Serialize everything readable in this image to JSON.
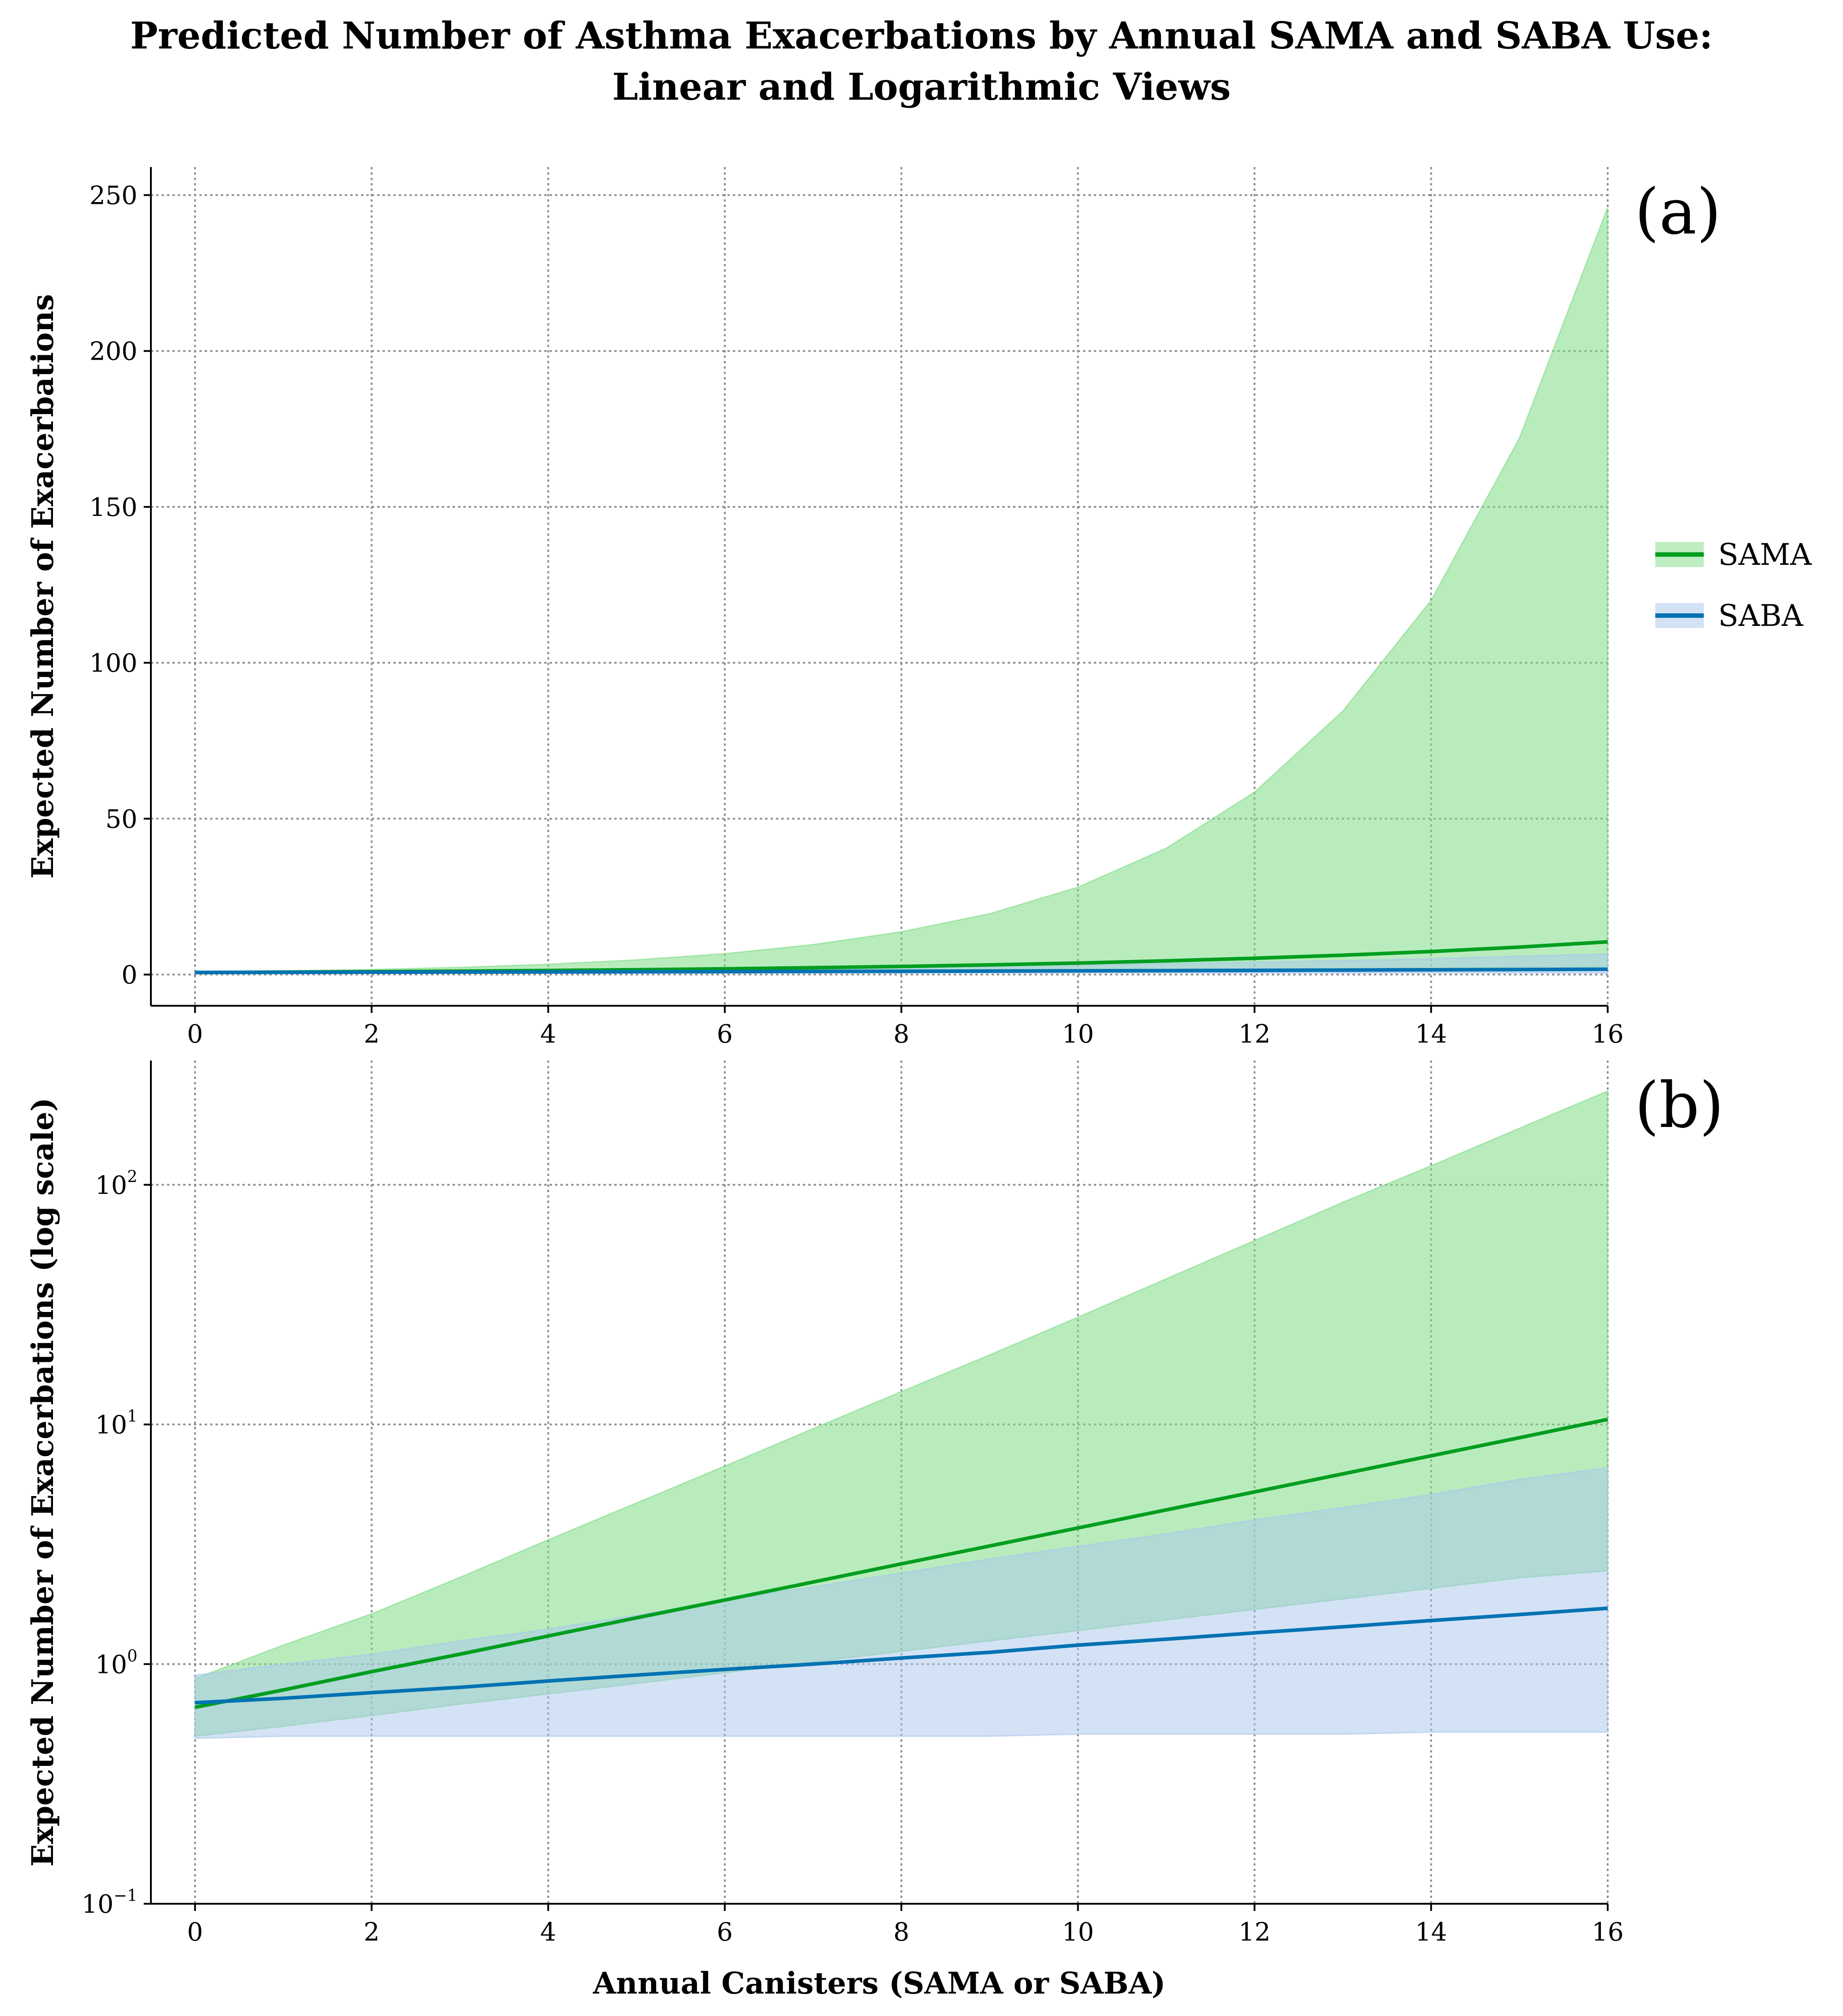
{
  "title_lines": [
    "Predicted Number of Asthma Exacerbations by Annual SAMA and SABA Use:",
    "Linear and Logarithmic Views"
  ],
  "legend": {
    "placement": "right",
    "items": [
      {
        "label": "SAMA",
        "series": "SAMA"
      },
      {
        "label": "SABA",
        "series": "SABA"
      }
    ]
  },
  "colors": {
    "SAMA_line": "#009e1f",
    "SAMA_band": "#7fdc86",
    "SABA_line": "#0072b2",
    "SABA_band": "#a9c6ee"
  },
  "chart_data": [
    {
      "type": "line",
      "panel_label": "(a)",
      "title": "",
      "xlabel": "",
      "ylabel": "Expected Number of Exacerbations",
      "yscale": "linear",
      "xlim": [
        -0.5,
        16
      ],
      "ylim": [
        -10,
        259
      ],
      "grid": true,
      "x_ticks": [
        0,
        2,
        4,
        6,
        8,
        10,
        12,
        14,
        16
      ],
      "x_tick_labels": [
        "0",
        "2",
        "4",
        "6",
        "8",
        "10",
        "12",
        "14",
        "16"
      ],
      "y_ticks": [
        0,
        50,
        100,
        150,
        200,
        250
      ],
      "y_tick_labels": [
        "0",
        "50",
        "100",
        "150",
        "200",
        "250"
      ],
      "x": [
        0,
        1,
        2,
        3,
        4,
        5,
        6,
        7,
        8,
        9,
        10,
        11,
        12,
        13,
        14,
        15,
        16
      ],
      "series": [
        {
          "name": "SAMA",
          "values": [
            0.66,
            0.78,
            0.93,
            1.1,
            1.31,
            1.56,
            1.85,
            2.2,
            2.62,
            3.11,
            3.7,
            4.4,
            5.23,
            6.22,
            7.4,
            8.8,
            10.5
          ],
          "lower": [
            0.5,
            0.55,
            0.61,
            0.68,
            0.75,
            0.83,
            0.92,
            1.02,
            1.13,
            1.25,
            1.38,
            1.53,
            1.69,
            1.87,
            2.07,
            2.29,
            2.45
          ],
          "upper": [
            0.87,
            1.2,
            1.62,
            2.3,
            3.3,
            4.7,
            6.7,
            9.6,
            13.7,
            19.5,
            28.0,
            40.5,
            58.5,
            84.5,
            120.0,
            172.0,
            246.0
          ]
        },
        {
          "name": "SABA",
          "values": [
            0.69,
            0.72,
            0.76,
            0.8,
            0.85,
            0.9,
            0.95,
            1.0,
            1.06,
            1.12,
            1.2,
            1.27,
            1.35,
            1.43,
            1.52,
            1.61,
            1.71
          ],
          "lower": [
            0.49,
            0.5,
            0.5,
            0.5,
            0.5,
            0.5,
            0.5,
            0.5,
            0.5,
            0.5,
            0.51,
            0.51,
            0.51,
            0.51,
            0.52,
            0.52,
            0.52
          ],
          "upper": [
            0.9,
            1.0,
            1.1,
            1.25,
            1.4,
            1.6,
            1.85,
            2.1,
            2.4,
            2.75,
            3.1,
            3.5,
            4.0,
            4.5,
            5.1,
            5.9,
            6.6
          ]
        }
      ]
    },
    {
      "type": "line",
      "panel_label": "(b)",
      "title": "",
      "xlabel": "Annual Canisters (SAMA or SABA)",
      "ylabel": "Expected Number of Exacerbations (log scale)",
      "yscale": "log",
      "xlim": [
        -0.5,
        16
      ],
      "ylim": [
        0.1,
        330
      ],
      "grid": true,
      "x_ticks": [
        0,
        2,
        4,
        6,
        8,
        10,
        12,
        14,
        16
      ],
      "x_tick_labels": [
        "0",
        "2",
        "4",
        "6",
        "8",
        "10",
        "12",
        "14",
        "16"
      ],
      "y_ticks": [
        0.1,
        1,
        10,
        100
      ],
      "y_tick_labels": [
        {
          "base": "10",
          "exp": "−1"
        },
        {
          "base": "10",
          "exp": "0"
        },
        {
          "base": "10",
          "exp": "1"
        },
        {
          "base": "10",
          "exp": "2"
        }
      ],
      "x": [
        0,
        1,
        2,
        3,
        4,
        5,
        6,
        7,
        8,
        9,
        10,
        11,
        12,
        13,
        14,
        15,
        16
      ],
      "series": [
        {
          "name": "SAMA",
          "values": [
            0.66,
            0.78,
            0.93,
            1.1,
            1.31,
            1.56,
            1.85,
            2.2,
            2.62,
            3.11,
            3.7,
            4.4,
            5.23,
            6.22,
            7.4,
            8.8,
            10.5
          ],
          "lower": [
            0.5,
            0.55,
            0.61,
            0.68,
            0.75,
            0.83,
            0.92,
            1.02,
            1.13,
            1.25,
            1.38,
            1.53,
            1.69,
            1.87,
            2.07,
            2.29,
            2.45
          ],
          "upper": [
            0.87,
            1.2,
            1.62,
            2.3,
            3.3,
            4.7,
            6.7,
            9.6,
            13.7,
            19.5,
            28.0,
            40.5,
            58.5,
            84.5,
            120.0,
            172.0,
            246.0
          ]
        },
        {
          "name": "SABA",
          "values": [
            0.69,
            0.72,
            0.76,
            0.8,
            0.85,
            0.9,
            0.95,
            1.0,
            1.06,
            1.12,
            1.2,
            1.27,
            1.35,
            1.43,
            1.52,
            1.61,
            1.71
          ],
          "lower": [
            0.49,
            0.5,
            0.5,
            0.5,
            0.5,
            0.5,
            0.5,
            0.5,
            0.5,
            0.5,
            0.51,
            0.51,
            0.51,
            0.51,
            0.52,
            0.52,
            0.52
          ],
          "upper": [
            0.9,
            1.0,
            1.1,
            1.25,
            1.4,
            1.6,
            1.85,
            2.1,
            2.4,
            2.75,
            3.1,
            3.5,
            4.0,
            4.5,
            5.1,
            5.9,
            6.6
          ]
        }
      ]
    }
  ]
}
